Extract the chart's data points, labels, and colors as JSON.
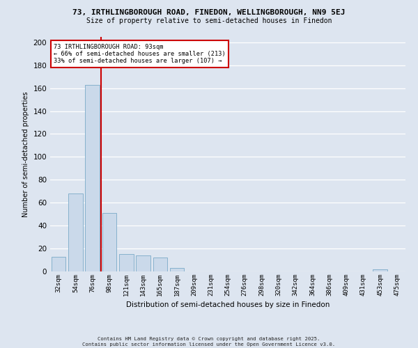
{
  "title_line1": "73, IRTHLINGBOROUGH ROAD, FINEDON, WELLINGBOROUGH, NN9 5EJ",
  "title_line2": "Size of property relative to semi-detached houses in Finedon",
  "xlabel": "Distribution of semi-detached houses by size in Finedon",
  "ylabel": "Number of semi-detached properties",
  "footer_line1": "Contains HM Land Registry data © Crown copyright and database right 2025.",
  "footer_line2": "Contains public sector information licensed under the Open Government Licence v3.0.",
  "annotation_line1": "73 IRTHLINGBOROUGH ROAD: 93sqm",
  "annotation_line2": "← 66% of semi-detached houses are smaller (213)",
  "annotation_line3": "33% of semi-detached houses are larger (107) →",
  "bar_color": "#cad9ea",
  "bar_edge_color": "#7aaac8",
  "redline_color": "#cc0000",
  "bg_color": "#dde5f0",
  "grid_color": "#ffffff",
  "categories": [
    "32sqm",
    "54sqm",
    "76sqm",
    "98sqm",
    "121sqm",
    "143sqm",
    "165sqm",
    "187sqm",
    "209sqm",
    "231sqm",
    "254sqm",
    "276sqm",
    "298sqm",
    "320sqm",
    "342sqm",
    "364sqm",
    "386sqm",
    "409sqm",
    "431sqm",
    "453sqm",
    "475sqm"
  ],
  "values": [
    13,
    68,
    163,
    51,
    15,
    14,
    12,
    3,
    0,
    0,
    0,
    0,
    0,
    0,
    0,
    0,
    0,
    0,
    0,
    2,
    0
  ],
  "redline_bar_index": 2,
  "ylim": [
    0,
    205
  ],
  "yticks": [
    0,
    20,
    40,
    60,
    80,
    100,
    120,
    140,
    160,
    180,
    200
  ]
}
